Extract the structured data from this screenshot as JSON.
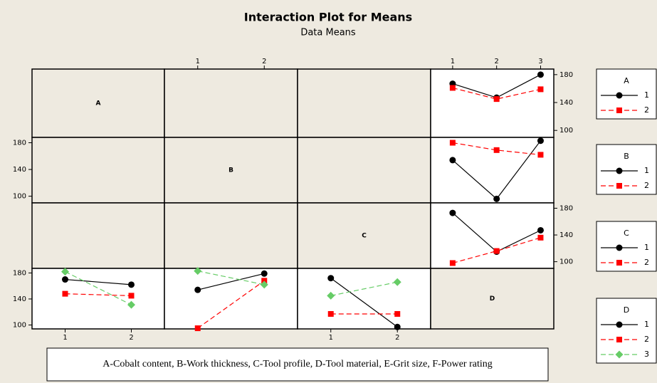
{
  "header": {
    "title": "Interaction Plot for Means",
    "subtitle": "Data Means",
    "note": "A-Cobalt content, B-Work thickness, C-Tool profile, D-Tool material, E-Grit size, F-Power rating"
  },
  "diagonal": [
    "A",
    "B",
    "C",
    "D"
  ],
  "chart_data": [
    {
      "type": "line",
      "legend_title": "A",
      "x": [
        1,
        2,
        3
      ],
      "xlim": [
        0.5,
        3.3
      ],
      "xticks": [
        1,
        2,
        3
      ],
      "ylim": [
        90,
        188
      ],
      "yticks": [
        100,
        140,
        180
      ],
      "series": [
        {
          "name": "1",
          "color": "#000000",
          "marker": "circle",
          "dashed": false,
          "values": [
            167,
            147,
            180
          ]
        },
        {
          "name": "2",
          "color": "#ff0000",
          "marker": "square",
          "dashed": true,
          "values": [
            161,
            145,
            159
          ]
        }
      ]
    },
    {
      "type": "line",
      "legend_title": "B",
      "x": [
        1,
        2,
        3
      ],
      "xlim": [
        0.5,
        3.3
      ],
      "ylim": [
        90,
        188
      ],
      "yticks": [
        100,
        140,
        180
      ],
      "series": [
        {
          "name": "1",
          "color": "#000000",
          "marker": "circle",
          "dashed": false,
          "values": [
            154,
            96,
            183
          ]
        },
        {
          "name": "2",
          "color": "#ff0000",
          "marker": "square",
          "dashed": true,
          "values": [
            180,
            169,
            162
          ]
        }
      ]
    },
    {
      "type": "line",
      "legend_title": "C",
      "x": [
        1,
        2,
        3
      ],
      "xlim": [
        0.5,
        3.3
      ],
      "ylim": [
        90,
        188
      ],
      "yticks": [
        100,
        140,
        180
      ],
      "series": [
        {
          "name": "1",
          "color": "#000000",
          "marker": "circle",
          "dashed": false,
          "values": [
            173,
            115,
            147
          ]
        },
        {
          "name": "2",
          "color": "#ff0000",
          "marker": "square",
          "dashed": true,
          "values": [
            98,
            116,
            136
          ]
        }
      ]
    },
    {
      "type": "line",
      "legend_title": "D",
      "x": [
        1,
        2
      ],
      "xlim": [
        0.5,
        2.5
      ],
      "xticks": [
        1,
        2
      ],
      "ylim": [
        94,
        187
      ],
      "yticks": [
        100,
        140,
        180
      ],
      "series": [
        {
          "name": "1",
          "color": "#000000",
          "marker": "circle",
          "dashed": false,
          "values": [
            170,
            162
          ]
        },
        {
          "name": "2",
          "color": "#ff0000",
          "marker": "square",
          "dashed": true,
          "values": [
            148,
            145
          ]
        },
        {
          "name": "3",
          "color": "#66cc66",
          "marker": "diamond",
          "dashed": true,
          "values": [
            182,
            131
          ]
        }
      ]
    },
    {
      "type": "line",
      "x": [
        1,
        2
      ],
      "xlim": [
        0.5,
        2.5
      ],
      "xticks": [
        1,
        2
      ],
      "ylim": [
        94,
        187
      ],
      "series": [
        {
          "name": "1",
          "color": "#000000",
          "marker": "circle",
          "dashed": false,
          "values": [
            154,
            179
          ]
        },
        {
          "name": "2",
          "color": "#ff0000",
          "marker": "square",
          "dashed": true,
          "values": [
            95,
            168
          ]
        },
        {
          "name": "3",
          "color": "#66cc66",
          "marker": "diamond",
          "dashed": true,
          "values": [
            183,
            162
          ]
        }
      ]
    },
    {
      "type": "line",
      "x": [
        1,
        2
      ],
      "xlim": [
        0.5,
        2.5
      ],
      "xticks": [
        1,
        2
      ],
      "ylim": [
        94,
        187
      ],
      "series": [
        {
          "name": "1",
          "color": "#000000",
          "marker": "circle",
          "dashed": false,
          "values": [
            172,
            97
          ]
        },
        {
          "name": "2",
          "color": "#ff0000",
          "marker": "square",
          "dashed": true,
          "values": [
            117,
            117
          ]
        },
        {
          "name": "3",
          "color": "#66cc66",
          "marker": "diamond",
          "dashed": true,
          "values": [
            145,
            166
          ]
        }
      ]
    }
  ]
}
